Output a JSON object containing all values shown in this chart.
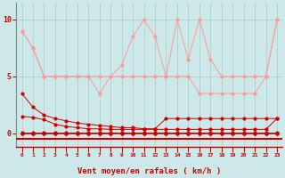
{
  "xlabel": "Vent moyen/en rafales ( km/h )",
  "background_color": "#cce8e8",
  "grid_color": "#aacccc",
  "x": [
    0,
    1,
    2,
    3,
    4,
    5,
    6,
    7,
    8,
    9,
    10,
    11,
    12,
    13,
    14,
    15,
    16,
    17,
    18,
    19,
    20,
    21,
    22,
    23
  ],
  "dark_color": "#cc0000",
  "light_color": "#ff9999",
  "line_light_decreasing": [
    9.0,
    7.5,
    5.0,
    5.0,
    5.0,
    5.0,
    5.0,
    5.0,
    5.0,
    5.0,
    5.0,
    5.0,
    5.0,
    5.0,
    5.0,
    5.0,
    3.5,
    3.5,
    3.5,
    3.5,
    3.5,
    3.5,
    5.0,
    10.0
  ],
  "line_light_volatile": [
    9.0,
    7.5,
    5.0,
    5.0,
    5.0,
    5.0,
    5.0,
    3.5,
    5.0,
    6.0,
    8.5,
    10.0,
    8.5,
    5.0,
    10.0,
    6.5,
    10.0,
    6.5,
    5.0,
    5.0,
    5.0,
    5.0,
    5.0,
    10.0
  ],
  "line_dark_drop": [
    3.5,
    2.3,
    1.6,
    1.3,
    1.1,
    0.9,
    0.8,
    0.7,
    0.6,
    0.5,
    0.5,
    0.4,
    0.4,
    1.3,
    1.3,
    1.3,
    1.3,
    1.3,
    1.3,
    1.3,
    1.3,
    1.3,
    1.3,
    1.3
  ],
  "line_dark_mid": [
    1.5,
    1.4,
    1.2,
    0.8,
    0.6,
    0.5,
    0.4,
    0.4,
    0.35,
    0.35,
    0.35,
    0.35,
    0.35,
    0.35,
    0.35,
    0.35,
    0.35,
    0.35,
    0.35,
    0.35,
    0.35,
    0.35,
    0.35,
    1.3
  ],
  "line_dark_low": [
    0.1,
    0.1,
    0.1,
    0.1,
    0.1,
    0.1,
    0.1,
    0.1,
    0.1,
    0.1,
    0.1,
    0.1,
    0.1,
    0.1,
    0.1,
    0.1,
    0.1,
    0.1,
    0.1,
    0.1,
    0.1,
    0.1,
    0.1,
    0.1
  ],
  "line_dark_zero": [
    0.0,
    0.0,
    0.0,
    0.0,
    0.0,
    0.0,
    0.0,
    0.0,
    0.0,
    0.0,
    0.0,
    0.0,
    0.0,
    0.0,
    0.0,
    0.0,
    0.0,
    0.0,
    0.0,
    0.0,
    0.0,
    0.0,
    0.0,
    0.0
  ],
  "yticks": [
    0,
    5,
    10
  ],
  "ylim": [
    -1.2,
    11.5
  ],
  "xlim": [
    -0.5,
    23.5
  ]
}
